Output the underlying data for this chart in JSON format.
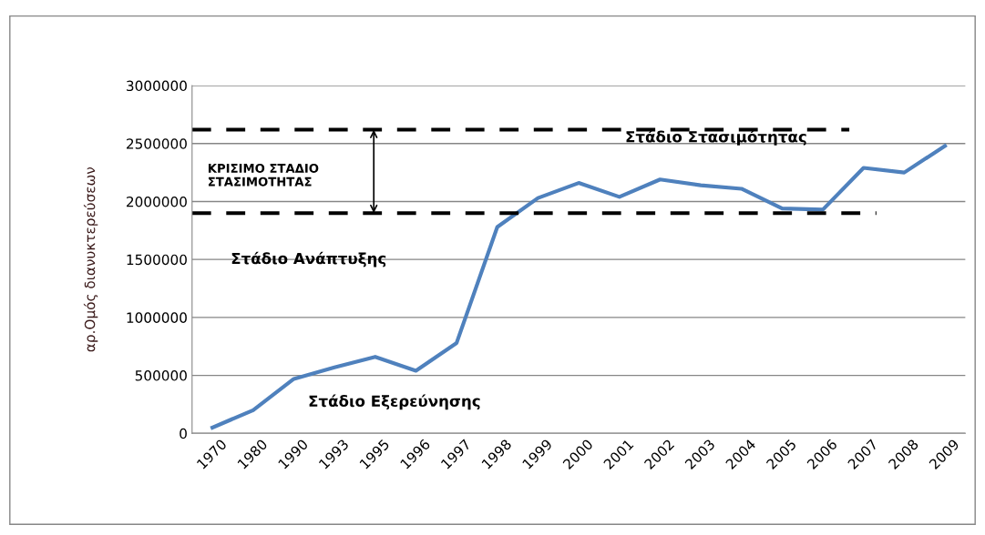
{
  "chart_data": {
    "type": "line",
    "ylabel": "αρ.Ομός διανυκτερεύσεων",
    "categories": [
      "1970",
      "1980",
      "1990",
      "1993",
      "1995",
      "1996",
      "1997",
      "1998",
      "1999",
      "2000",
      "2001",
      "2002",
      "2003",
      "2004",
      "2005",
      "2006",
      "2007",
      "2008",
      "2009"
    ],
    "series": [
      {
        "color": "#4f81bd",
        "values": [
          50000,
          200000,
          470000,
          570000,
          660000,
          540000,
          780000,
          1780000,
          2030000,
          2160000,
          2040000,
          2190000,
          2140000,
          2110000,
          1940000,
          1930000,
          2290000,
          2250000,
          2480000
        ]
      }
    ],
    "ylim": [
      0,
      3000000
    ],
    "yticks": [
      0,
      500000,
      1000000,
      1500000,
      2000000,
      2500000,
      3000000
    ],
    "grid": "y",
    "marker": "none",
    "line_style": "solid",
    "ref_lines": [
      {
        "axis": "y",
        "value": 2620000,
        "color": "#000000",
        "line_style": "dashed"
      },
      {
        "axis": "y",
        "value": 1900000,
        "color": "#000000",
        "line_style": "dashed"
      }
    ],
    "annotations": [
      "ΚΡΙΣΙΜΟ ΣΤΑΔΙΟ\nΣΤΑΣΙΜΟΤΗΤΑΣ",
      "Στάδιο Στασιμότητας",
      "Στάδιο Ανάπτυξης",
      "Στάδιο Εξερεύνησης"
    ]
  }
}
